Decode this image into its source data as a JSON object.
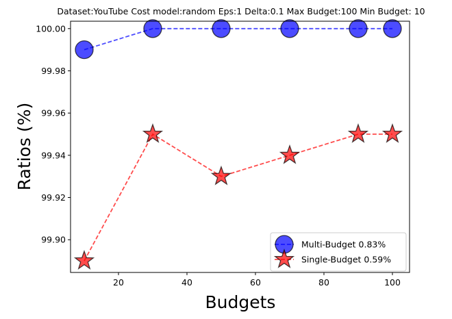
{
  "chart_data": {
    "type": "line",
    "title": "Dataset:YouTube Cost model:random Eps:1 Delta:0.1 Max Budget:100 Min Budget: 10",
    "xlabel": "Budgets",
    "ylabel": "Ratios (%)",
    "xlim": [
      6,
      105
    ],
    "ylim": [
      99.8845,
      100.0035
    ],
    "xticks": [
      20,
      40,
      60,
      80,
      100
    ],
    "yticks": [
      99.9,
      99.92,
      99.94,
      99.96,
      99.98,
      100.0
    ],
    "ytick_labels": [
      "99.90",
      "99.92",
      "99.94",
      "99.96",
      "99.98",
      "100.00"
    ],
    "grid": false,
    "legend_position": "bottom-right",
    "x": [
      10,
      30,
      50,
      70,
      90,
      100
    ],
    "series": [
      {
        "name": "Multi-Budget 0.83%",
        "values": [
          99.99,
          100.0,
          100.0,
          100.0,
          100.0,
          100.0
        ],
        "color": "#0000ff",
        "marker": "circle",
        "linestyle": "dashed"
      },
      {
        "name": "Single-Budget 0.59%",
        "values": [
          99.89,
          99.95,
          99.93,
          99.94,
          99.95,
          99.95
        ],
        "color": "#ff0000",
        "marker": "star",
        "linestyle": "dashed"
      }
    ]
  }
}
